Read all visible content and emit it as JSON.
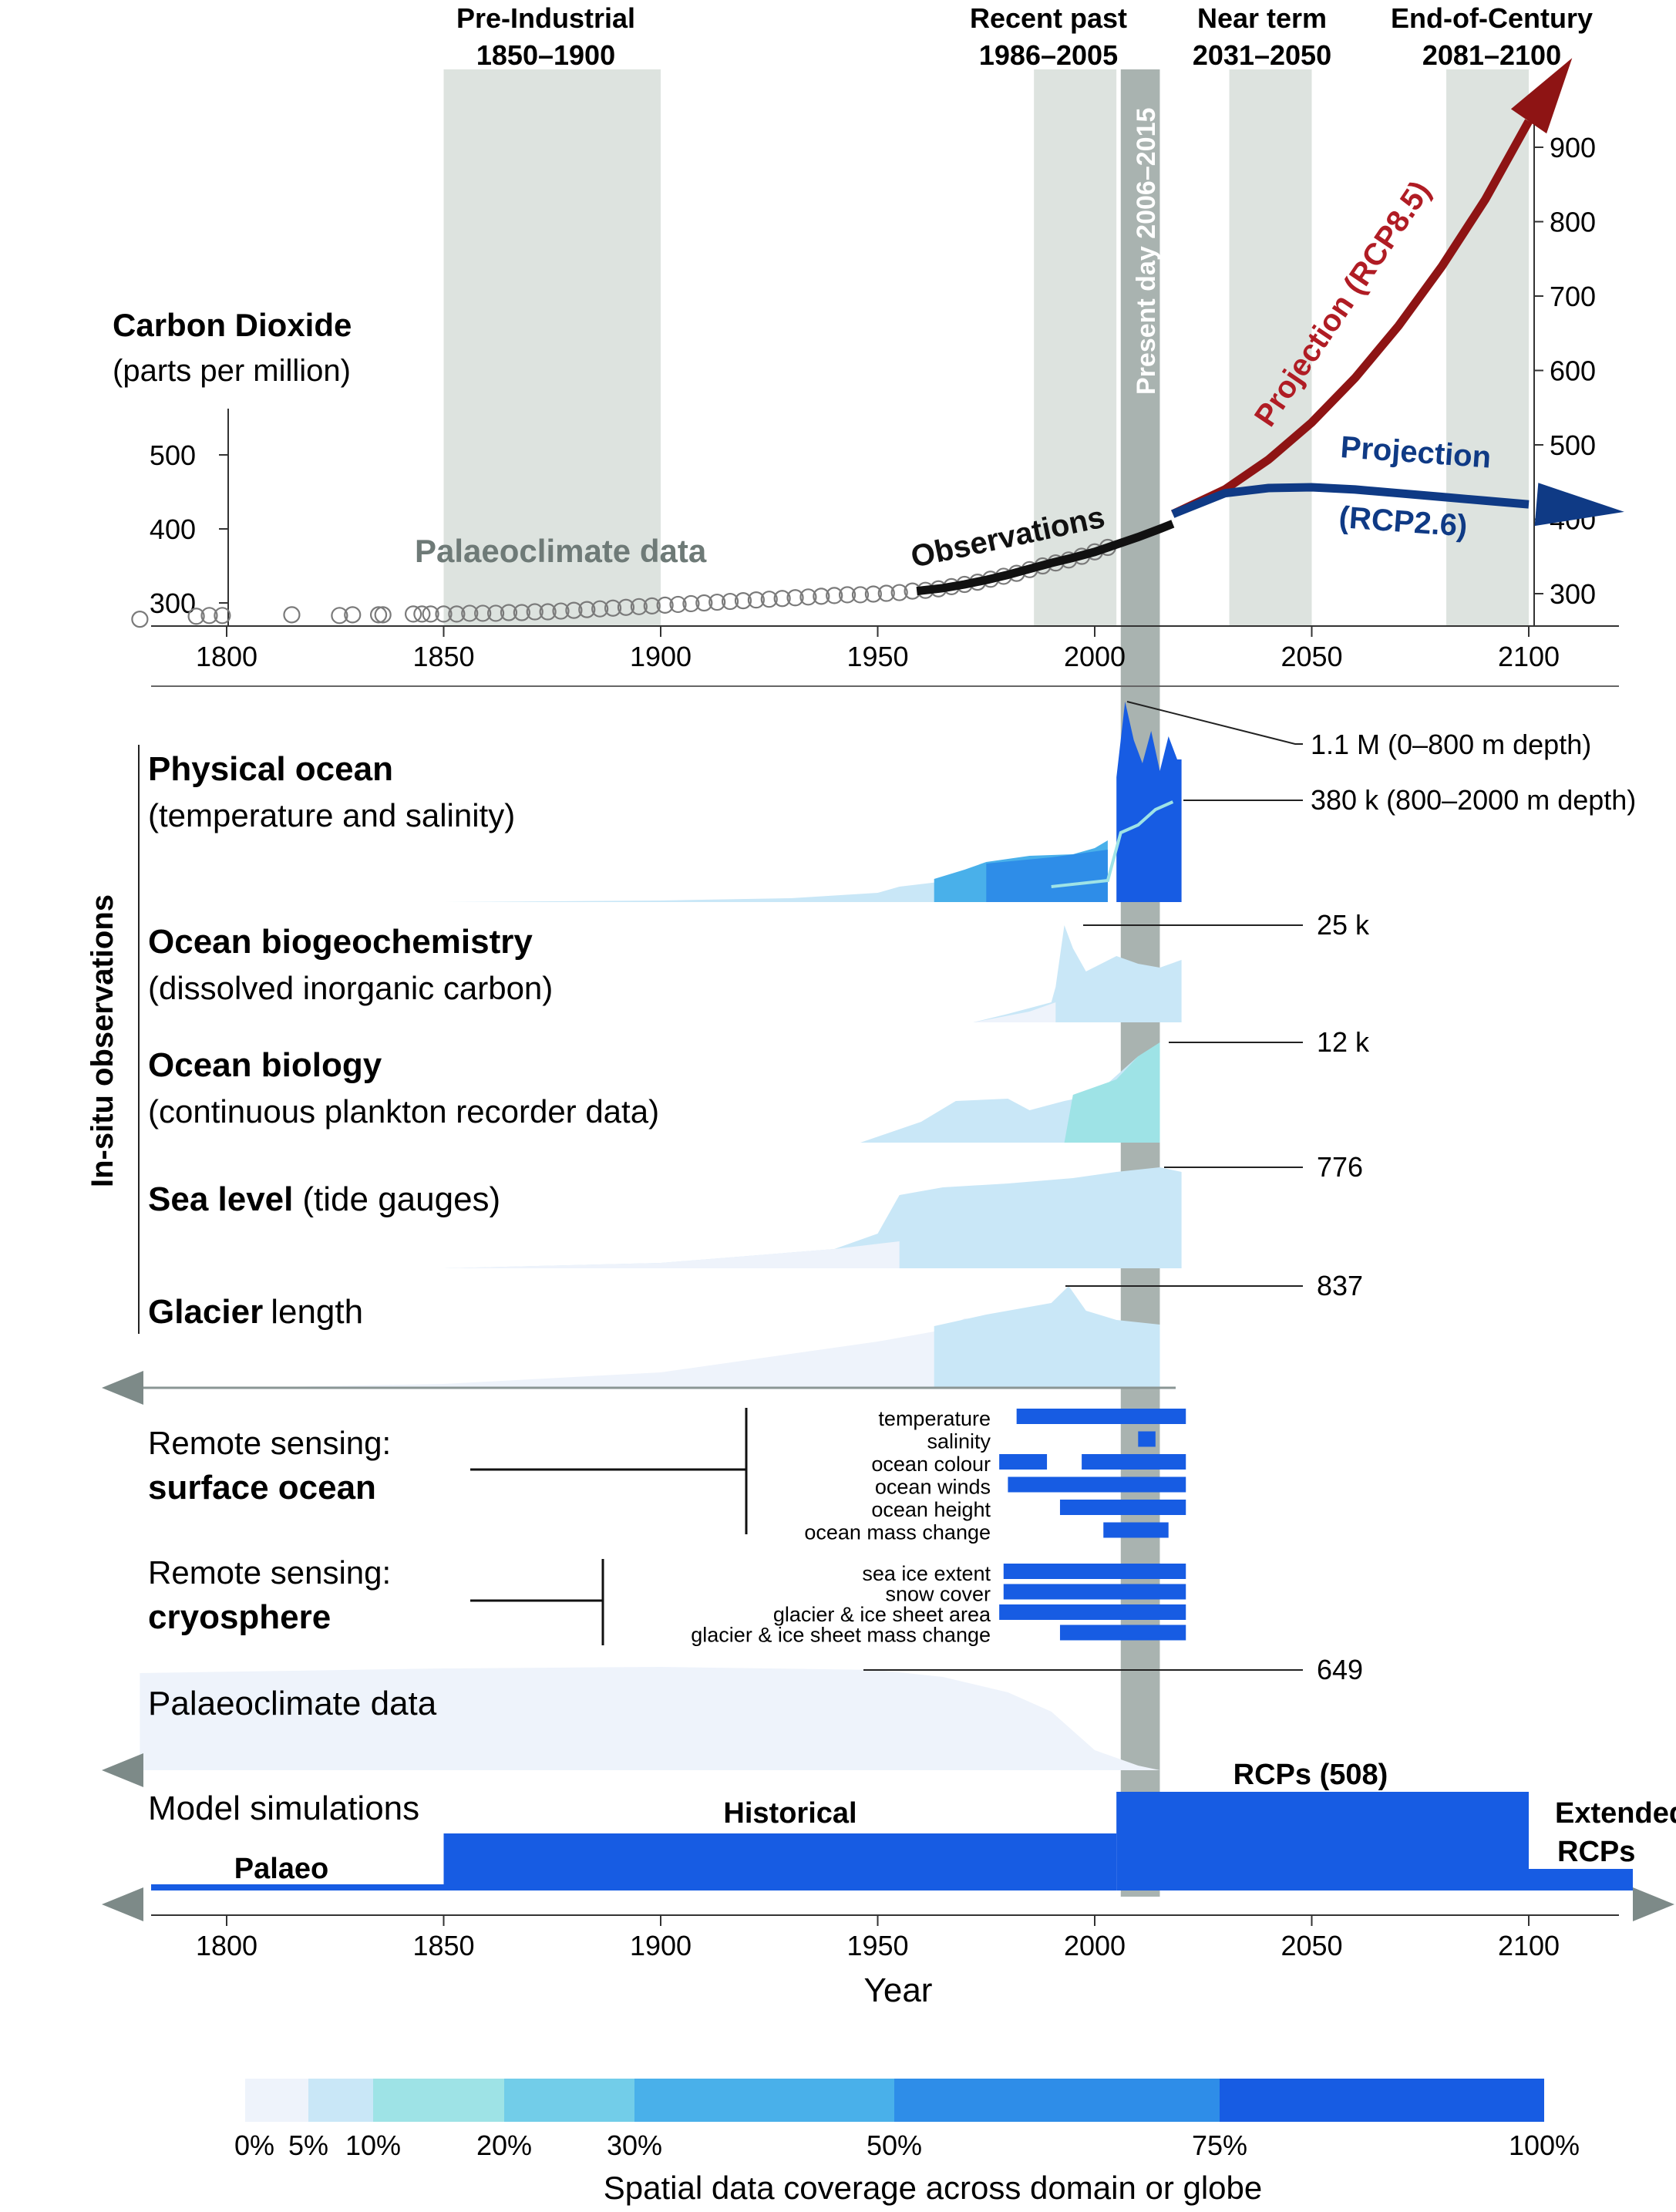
{
  "periods": [
    {
      "label1": "Pre-Industrial",
      "label2": "1850–1900",
      "start": 1850,
      "end": 1900
    },
    {
      "label1": "Recent past",
      "label2": "1986–2005",
      "start": 1986,
      "end": 2005
    },
    {
      "label1": "Near term",
      "label2": "2031–2050",
      "start": 2031,
      "end": 2050
    },
    {
      "label1": "End-of-Century",
      "label2": "2081–2100",
      "start": 2081,
      "end": 2100
    }
  ],
  "present_day": {
    "label": "Present day 2006–2015",
    "start": 2006,
    "end": 2015
  },
  "x_axis": {
    "ticks": [
      1800,
      1850,
      1900,
      1950,
      2000,
      2050,
      2100
    ],
    "label": "Year",
    "min": 1780,
    "max": 2123
  },
  "co2_panel": {
    "title": "Carbon Dioxide",
    "subtitle": "(parts per million)",
    "left_ticks": [
      300,
      400,
      500
    ],
    "right_ticks": [
      300,
      400,
      500,
      600,
      700,
      800,
      900
    ],
    "palaeo_label": "Palaeoclimate data",
    "obs_label": "Observations",
    "rcp85_label": "Projection (RCP8.5)",
    "rcp26_label1": "Projection",
    "rcp26_label2": "(RCP2.6)"
  },
  "chart_data": {
    "type": "line",
    "palaeo_points": [
      [
        1780,
        278
      ],
      [
        1793,
        282
      ],
      [
        1796,
        283
      ],
      [
        1799,
        283
      ],
      [
        1815,
        284
      ],
      [
        1826,
        283
      ],
      [
        1829,
        284
      ],
      [
        1835,
        284
      ],
      [
        1836,
        284
      ],
      [
        1843,
        285
      ],
      [
        1845,
        285
      ],
      [
        1847,
        285
      ],
      [
        1850,
        285
      ],
      [
        1853,
        285
      ],
      [
        1856,
        286
      ],
      [
        1859,
        286
      ],
      [
        1862,
        286
      ],
      [
        1865,
        287
      ],
      [
        1868,
        287
      ],
      [
        1871,
        288
      ],
      [
        1874,
        288
      ],
      [
        1877,
        289
      ],
      [
        1880,
        290
      ],
      [
        1883,
        291
      ],
      [
        1886,
        292
      ],
      [
        1889,
        293
      ],
      [
        1892,
        294
      ],
      [
        1895,
        295
      ],
      [
        1898,
        296
      ],
      [
        1901,
        297
      ],
      [
        1904,
        298
      ],
      [
        1907,
        299
      ],
      [
        1910,
        300
      ],
      [
        1913,
        301
      ],
      [
        1916,
        302
      ],
      [
        1919,
        303
      ],
      [
        1922,
        304
      ],
      [
        1925,
        305
      ],
      [
        1928,
        306
      ],
      [
        1931,
        307
      ],
      [
        1934,
        308
      ],
      [
        1937,
        309
      ],
      [
        1940,
        310
      ],
      [
        1943,
        311
      ],
      [
        1946,
        311
      ],
      [
        1949,
        312
      ],
      [
        1952,
        313
      ],
      [
        1955,
        314
      ],
      [
        1958,
        316
      ],
      [
        1961,
        317
      ],
      [
        1964,
        319
      ],
      [
        1967,
        322
      ],
      [
        1970,
        325
      ],
      [
        1973,
        328
      ],
      [
        1976,
        332
      ],
      [
        1979,
        336
      ],
      [
        1982,
        340
      ],
      [
        1985,
        345
      ],
      [
        1988,
        350
      ],
      [
        1991,
        354
      ],
      [
        1994,
        358
      ],
      [
        1997,
        363
      ],
      [
        2000,
        369
      ],
      [
        2003,
        375
      ]
    ],
    "observations": [
      [
        1959,
        316
      ],
      [
        1965,
        320
      ],
      [
        1970,
        325
      ],
      [
        1975,
        331
      ],
      [
        1980,
        338
      ],
      [
        1985,
        346
      ],
      [
        1990,
        354
      ],
      [
        1995,
        361
      ],
      [
        2000,
        369
      ],
      [
        2005,
        379
      ],
      [
        2010,
        389
      ],
      [
        2015,
        400
      ],
      [
        2018,
        407
      ]
    ],
    "rcp85": [
      [
        2018,
        407
      ],
      [
        2030,
        440
      ],
      [
        2040,
        480
      ],
      [
        2050,
        530
      ],
      [
        2060,
        590
      ],
      [
        2070,
        660
      ],
      [
        2080,
        740
      ],
      [
        2090,
        830
      ],
      [
        2100,
        935
      ],
      [
        2110,
        1020
      ]
    ],
    "rcp26": [
      [
        2018,
        407
      ],
      [
        2030,
        435
      ],
      [
        2040,
        442
      ],
      [
        2050,
        443
      ],
      [
        2060,
        440
      ],
      [
        2070,
        435
      ],
      [
        2080,
        430
      ],
      [
        2090,
        425
      ],
      [
        2100,
        420
      ],
      [
        2122,
        410
      ]
    ],
    "ylim_left": [
      270,
      540
    ],
    "ylim_right": [
      270,
      950
    ]
  },
  "insitu_label": "In-situ observations",
  "datasets": [
    {
      "title": "Physical ocean",
      "desc": "(temperature and salinity)",
      "ann": "1.1 M (0–800 m depth)",
      "ann2": "380 k (800–2000 m depth)"
    },
    {
      "title": "Ocean biogeochemistry",
      "desc": "(dissolved inorganic carbon)",
      "ann": "25 k"
    },
    {
      "title": "Ocean biology",
      "desc": "(continuous plankton recorder data)",
      "ann": "12 k"
    },
    {
      "title": "Sea level",
      "desc": "(tide gauges)",
      "ann": "776"
    },
    {
      "title": "Glacier",
      "desc": "length",
      "ann": "837"
    }
  ],
  "remote_ocean": {
    "label1": "Remote sensing:",
    "label2": "surface ocean",
    "items": [
      {
        "name": "temperature",
        "segs": [
          [
            1982,
            2021
          ]
        ]
      },
      {
        "name": "salinity",
        "segs": [
          [
            2010,
            2014
          ]
        ]
      },
      {
        "name": "ocean colour",
        "segs": [
          [
            1978,
            1989
          ],
          [
            1997,
            2021
          ]
        ]
      },
      {
        "name": "ocean winds",
        "segs": [
          [
            1980,
            2021
          ]
        ]
      },
      {
        "name": "ocean height",
        "segs": [
          [
            1992,
            2021
          ]
        ]
      },
      {
        "name": "ocean mass change",
        "segs": [
          [
            2002,
            2017
          ]
        ]
      }
    ]
  },
  "remote_cryo": {
    "label1": "Remote sensing:",
    "label2": "cryosphere",
    "items": [
      {
        "name": "sea ice extent",
        "segs": [
          [
            1979,
            2021
          ]
        ]
      },
      {
        "name": "snow cover",
        "segs": [
          [
            1979,
            2021
          ]
        ]
      },
      {
        "name": "glacier & ice sheet area",
        "segs": [
          [
            1978,
            2021
          ]
        ]
      },
      {
        "name": "glacier & ice sheet mass change",
        "segs": [
          [
            1992,
            2021
          ]
        ]
      }
    ]
  },
  "palaeo_section": {
    "label": "Palaeoclimate data",
    "ann": "649"
  },
  "models": {
    "label": "Model simulations",
    "palaeo": "Palaeo",
    "historical": "Historical",
    "rcps": "RCPs (508)",
    "extended1": "Extended",
    "extended2": "RCPs"
  },
  "legend": {
    "ticks": [
      "0%",
      "5%",
      "10%",
      "20%",
      "30%",
      "50%",
      "75%",
      "100%"
    ],
    "colors": [
      "#eef3fb",
      "#c9e7f7",
      "#9ee3e6",
      "#72cde9",
      "#49b0ea",
      "#2e8de8",
      "#175ce3"
    ],
    "title": "Spatial data coverage across domain or globe"
  }
}
